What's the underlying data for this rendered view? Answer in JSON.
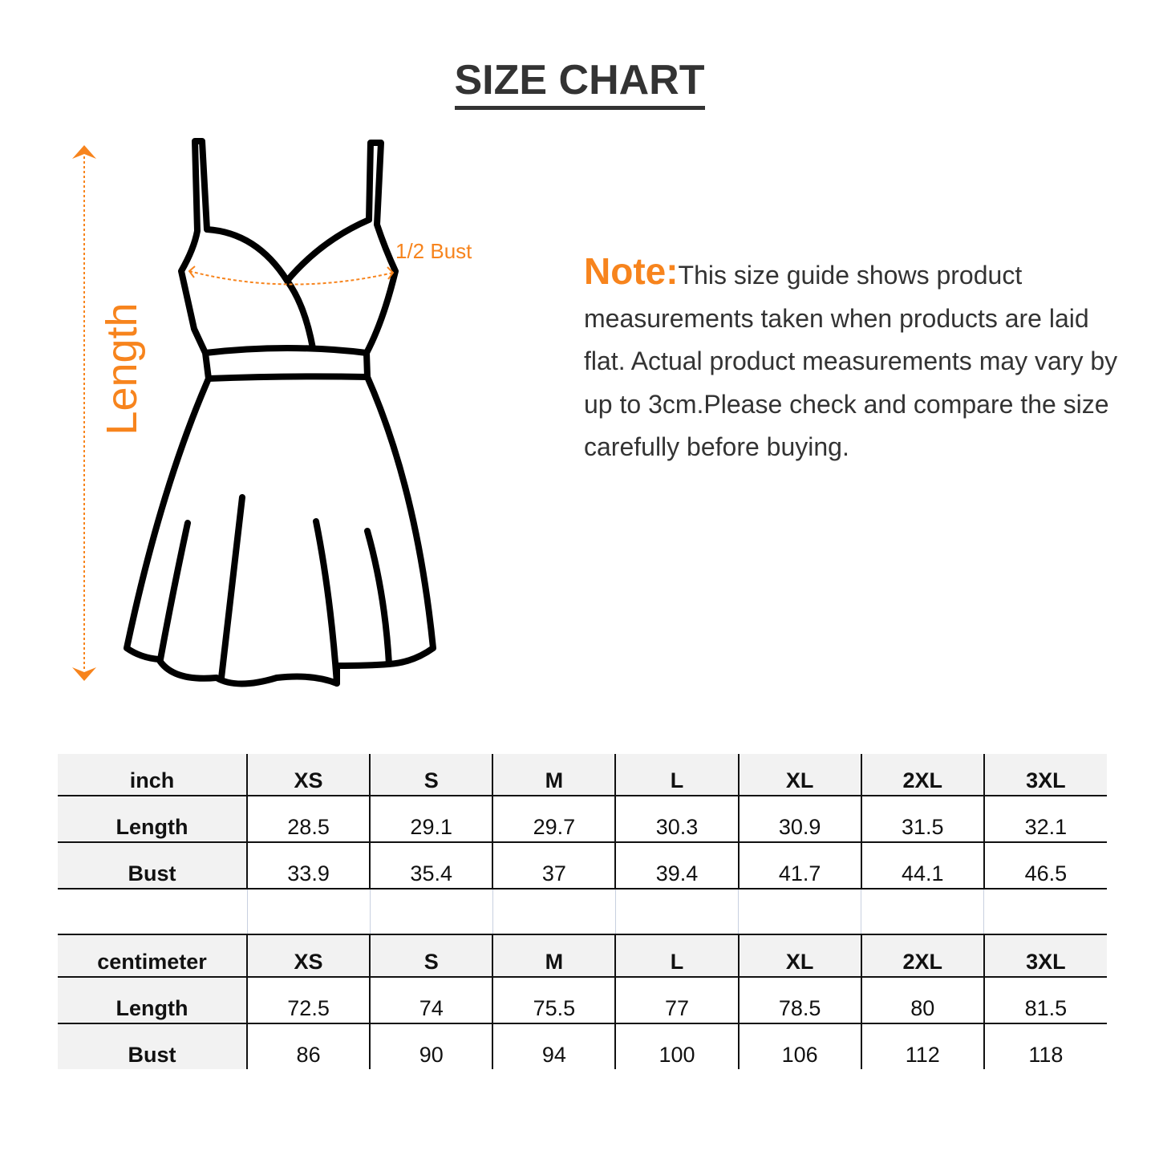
{
  "title": "SIZE CHART",
  "diagram": {
    "length_label": "Length",
    "bust_label": "1/2 Bust",
    "accent_color": "#f7841d"
  },
  "note": {
    "label": "Note:",
    "text": "This size guide shows product measurements taken when products are laid flat. Actual product measurements may vary by up to 3cm.Please check and compare the size carefully before buying."
  },
  "tables": [
    {
      "unit": "inch",
      "sizes": [
        "XS",
        "S",
        "M",
        "L",
        "XL",
        "2XL",
        "3XL"
      ],
      "rows": [
        {
          "label": "Length",
          "values": [
            "28.5",
            "29.1",
            "29.7",
            "30.3",
            "30.9",
            "31.5",
            "32.1"
          ]
        },
        {
          "label": "Bust",
          "values": [
            "33.9",
            "35.4",
            "37",
            "39.4",
            "41.7",
            "44.1",
            "46.5"
          ]
        }
      ]
    },
    {
      "unit": "centimeter",
      "sizes": [
        "XS",
        "S",
        "M",
        "L",
        "XL",
        "2XL",
        "3XL"
      ],
      "rows": [
        {
          "label": "Length",
          "values": [
            "72.5",
            "74",
            "75.5",
            "77",
            "78.5",
            "80",
            "81.5"
          ]
        },
        {
          "label": "Bust",
          "values": [
            "86",
            "90",
            "94",
            "100",
            "106",
            "112",
            "118"
          ]
        }
      ]
    }
  ]
}
